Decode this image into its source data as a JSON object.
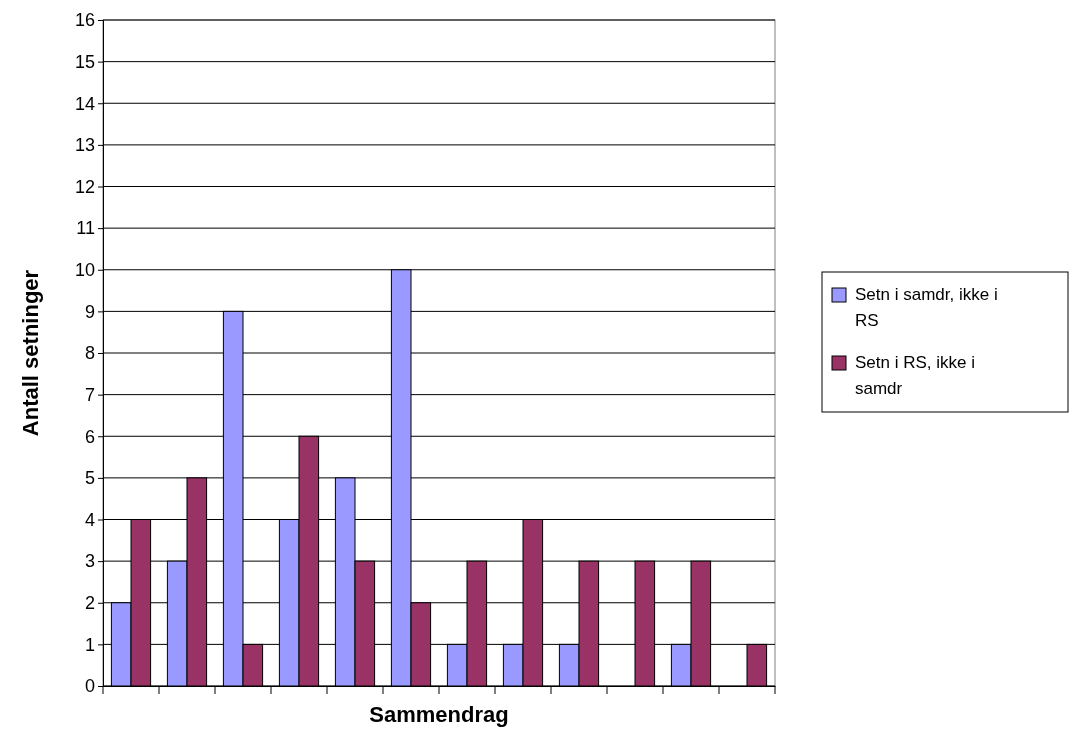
{
  "chart_data": {
    "type": "bar",
    "xlabel": "Sammendrag",
    "ylabel": "Antall setninger",
    "categories": [
      null,
      null,
      null,
      null,
      null,
      null,
      null,
      null,
      null,
      null,
      null,
      null
    ],
    "series": [
      {
        "name": "Setn i samdr, ikke i RS",
        "color": "#9999ff",
        "values": [
          2,
          3,
          9,
          4,
          5,
          10,
          1,
          1,
          1,
          0,
          1,
          0
        ]
      },
      {
        "name": "Setn i RS, ikke i samdr",
        "color": "#993366",
        "values": [
          4,
          5,
          1,
          6,
          3,
          2,
          3,
          4,
          3,
          3,
          3,
          1
        ]
      }
    ],
    "ylim": [
      0,
      16
    ],
    "yticks": [
      0,
      1,
      2,
      3,
      4,
      5,
      6,
      7,
      8,
      9,
      10,
      11,
      12,
      13,
      14,
      15,
      16
    ],
    "grid": "y",
    "legend": "right"
  }
}
